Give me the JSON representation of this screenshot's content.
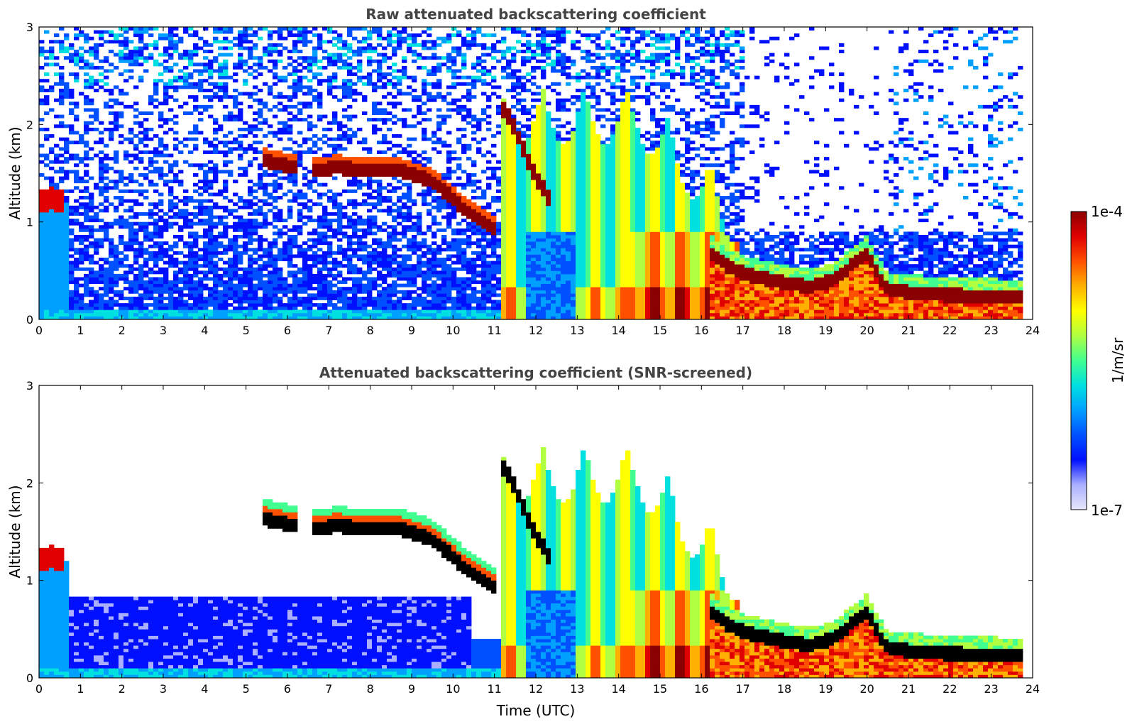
{
  "chart_data": [
    {
      "type": "heatmap",
      "title": "Raw attenuated backscattering coefficient",
      "xlabel": "",
      "ylabel": "Altitude (km)",
      "xlim": [
        0,
        24
      ],
      "ylim": [
        0,
        3
      ],
      "xticks": [
        "0",
        "1",
        "2",
        "3",
        "4",
        "5",
        "6",
        "7",
        "8",
        "9",
        "10",
        "11",
        "12",
        "13",
        "14",
        "15",
        "16",
        "17",
        "18",
        "19",
        "20",
        "21",
        "22",
        "23",
        "24"
      ],
      "yticks": [
        "0",
        "1",
        "2",
        "3"
      ],
      "screened": false,
      "features": {
        "elevated_layer": [
          [
            5.35,
            1.64
          ],
          [
            6.0,
            1.58
          ],
          [
            6.6,
            1.52
          ],
          [
            7.2,
            1.56
          ],
          [
            8.0,
            1.53
          ],
          [
            8.8,
            1.52
          ],
          [
            9.4,
            1.44
          ],
          [
            9.9,
            1.28
          ],
          [
            10.3,
            1.12
          ],
          [
            10.8,
            0.98
          ],
          [
            11.1,
            0.9
          ]
        ],
        "early_layer": [
          [
            0.0,
            1.2
          ],
          [
            0.3,
            1.25
          ],
          [
            0.6,
            1.2
          ]
        ],
        "rising_plume": [
          [
            11.1,
            2.2
          ],
          [
            11.4,
            2.05
          ],
          [
            11.7,
            1.75
          ],
          [
            12.0,
            1.45
          ],
          [
            12.4,
            1.2
          ]
        ],
        "boundary_layer_top": [
          [
            16.2,
            0.7
          ],
          [
            16.6,
            0.55
          ],
          [
            17.2,
            0.45
          ],
          [
            18.0,
            0.38
          ],
          [
            18.6,
            0.34
          ],
          [
            19.2,
            0.4
          ],
          [
            19.6,
            0.55
          ],
          [
            20.0,
            0.68
          ],
          [
            20.2,
            0.5
          ],
          [
            20.5,
            0.3
          ],
          [
            21.0,
            0.28
          ],
          [
            22.0,
            0.25
          ],
          [
            23.0,
            0.24
          ],
          [
            23.8,
            0.22
          ]
        ]
      }
    },
    {
      "type": "heatmap",
      "title": "Attenuated backscattering coefficient (SNR-screened)",
      "xlabel": "Time (UTC)",
      "ylabel": "Altitude (km)",
      "xlim": [
        0,
        24
      ],
      "ylim": [
        0,
        3
      ],
      "xticks": [
        "0",
        "1",
        "2",
        "3",
        "4",
        "5",
        "6",
        "7",
        "8",
        "9",
        "10",
        "11",
        "12",
        "13",
        "14",
        "15",
        "16",
        "17",
        "18",
        "19",
        "20",
        "21",
        "22",
        "23",
        "24"
      ],
      "yticks": [
        "0",
        "1",
        "2",
        "3"
      ],
      "screened": true
    }
  ],
  "colorbar": {
    "label": "1/m/sr",
    "min_label": "1e-7",
    "max_label": "1e-4",
    "colors": [
      "#e6e6fa",
      "#aab0ff",
      "#0010ff",
      "#0050ff",
      "#00a0ff",
      "#00e0e0",
      "#40ff90",
      "#b0ff40",
      "#ffff00",
      "#ffb000",
      "#ff5000",
      "#e00000",
      "#8b0000"
    ]
  }
}
